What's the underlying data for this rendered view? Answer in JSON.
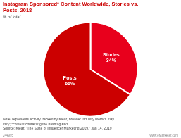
{
  "chart_data": {
    "type": "pie",
    "title": "Instagram Sponsored* Content Worldwide, Stories vs.\nPosts, 2018",
    "subtitle": "% of total",
    "categories": [
      "Stories",
      "Posts"
    ],
    "values": [
      34,
      66
    ],
    "colors": [
      "#e8001c",
      "#cc0000"
    ],
    "data_labels": true,
    "value_labels": [
      "Stories\n34%",
      "Posts\n66%"
    ],
    "legend": false,
    "note": "Note: represents activity tracked by Klear, broader industry metrics may\nvary; *content containing the hashtag #ad\nSource: Klear, \"The State of Influencer Marketing 2019,\" Jan 14, 2019",
    "annotations": [
      "244995",
      "www.eMarketer.com"
    ]
  }
}
